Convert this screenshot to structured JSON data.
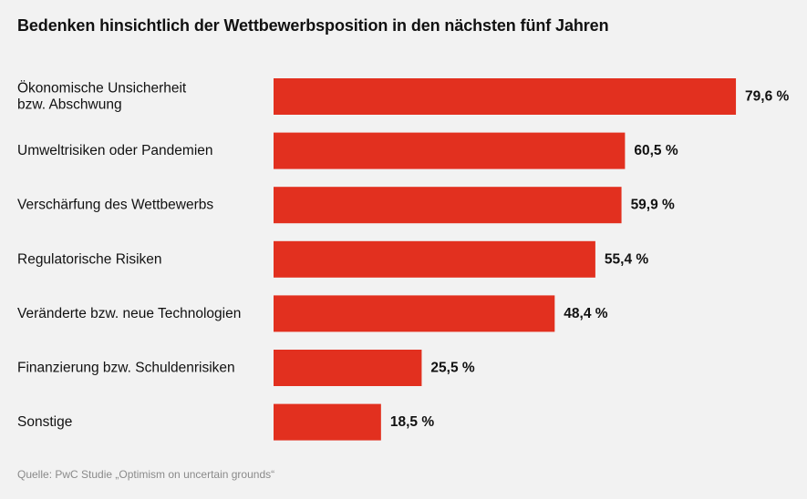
{
  "chart_data": {
    "type": "bar",
    "orientation": "horizontal",
    "title": "Bedenken hinsichtlich der Wettbewerbsposition in den nächsten fünf Jahren",
    "categories": [
      [
        "Ökonomische Unsicherheit",
        "bzw. Abschwung"
      ],
      [
        "Umweltrisiken oder Pandemien"
      ],
      [
        "Verschärfung des Wettbewerbs"
      ],
      [
        "Regulatorische Risiken"
      ],
      [
        "Veränderte bzw. neue Technologien"
      ],
      [
        "Finanzierung bzw. Schuldenrisiken"
      ],
      [
        "Sonstige"
      ]
    ],
    "values": [
      79.6,
      60.5,
      59.9,
      55.4,
      48.4,
      25.5,
      18.5
    ],
    "value_labels": [
      "79,6 %",
      "60,5 %",
      "59,9 %",
      "55,4 %",
      "48,4 %",
      "25,5 %",
      "18,5 %"
    ],
    "unit": "%",
    "xlim": [
      0,
      100
    ],
    "bar_color": "#e2301f",
    "grid": false,
    "xlabel": "",
    "ylabel": ""
  },
  "source": "Quelle: PwC Studie „Optimism on uncertain grounds“"
}
